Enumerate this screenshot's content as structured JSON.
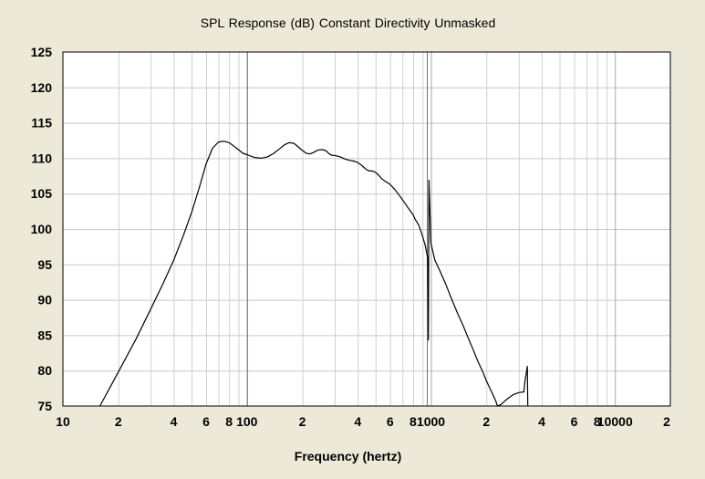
{
  "chart_data": {
    "type": "line",
    "title": "SPL Response (dB)    Constant Directivity    Unmasked",
    "xlabel": "Frequency (hertz)",
    "ylabel": "",
    "x_scale": "log",
    "xlim": [
      10,
      20000
    ],
    "ylim": [
      75,
      125
    ],
    "grid": true,
    "y_ticks": [
      125,
      120,
      115,
      110,
      105,
      100,
      95,
      90,
      85,
      80,
      75
    ],
    "x_ticks": [
      {
        "value": 10,
        "label": "10"
      },
      {
        "value": 20,
        "label": "2"
      },
      {
        "value": 40,
        "label": "4"
      },
      {
        "value": 60,
        "label": "6"
      },
      {
        "value": 80,
        "label": "8"
      },
      {
        "value": 100,
        "label": "100"
      },
      {
        "value": 200,
        "label": "2"
      },
      {
        "value": 400,
        "label": "4"
      },
      {
        "value": 600,
        "label": "6"
      },
      {
        "value": 800,
        "label": "8"
      },
      {
        "value": 1000,
        "label": "1000"
      },
      {
        "value": 2000,
        "label": "2"
      },
      {
        "value": 4000,
        "label": "4"
      },
      {
        "value": 6000,
        "label": "6"
      },
      {
        "value": 8000,
        "label": "8"
      },
      {
        "value": 10000,
        "label": "10000"
      },
      {
        "value": 20000,
        "label": "2"
      }
    ],
    "vertical_markers": [
      {
        "x": 100,
        "style": "darker grid line"
      },
      {
        "x": 950,
        "style": "darker grid line"
      }
    ],
    "series": [
      {
        "x": [
          15.9,
          20,
          25,
          30,
          35,
          40,
          45,
          50,
          55,
          60,
          65,
          70,
          75,
          80,
          85,
          90,
          95,
          100,
          110,
          120,
          130,
          140,
          150,
          160,
          170,
          180,
          190,
          200,
          210,
          220,
          230,
          240,
          250,
          260,
          270,
          280,
          290,
          300,
          320,
          340,
          360,
          380,
          400,
          420,
          440,
          460,
          480,
          500,
          520,
          540,
          560,
          600,
          640,
          680,
          720,
          760,
          800,
          820,
          860,
          900,
          930,
          960,
          968,
          975,
          1000,
          1050,
          1100,
          1200,
          1300,
          1400,
          1500,
          1600,
          1700,
          1800,
          1900,
          2000,
          2100,
          2190,
          2250,
          2300,
          2400,
          2600,
          2800,
          3000,
          3200,
          3250,
          3300,
          3340,
          3360
        ],
        "y": [
          75.0,
          79.8,
          84.5,
          88.7,
          92.3,
          95.6,
          99.0,
          102.3,
          105.8,
          109.2,
          111.4,
          112.3,
          112.4,
          112.2,
          111.7,
          111.2,
          110.7,
          110.5,
          110.1,
          110.0,
          110.2,
          110.7,
          111.3,
          111.9,
          112.2,
          112.1,
          111.6,
          111.1,
          110.7,
          110.6,
          110.8,
          111.1,
          111.2,
          111.2,
          111.0,
          110.6,
          110.4,
          110.4,
          110.2,
          109.9,
          109.7,
          109.6,
          109.4,
          109.0,
          108.5,
          108.2,
          108.2,
          108.0,
          107.6,
          107.1,
          106.8,
          106.3,
          105.5,
          104.6,
          103.7,
          102.8,
          102.0,
          101.4,
          100.5,
          99.0,
          97.7,
          95.9,
          84.3,
          106.9,
          98.0,
          95.6,
          94.5,
          92.3,
          90.0,
          88.0,
          86.3,
          84.5,
          82.9,
          81.3,
          80.0,
          78.6,
          77.4,
          76.4,
          75.7,
          75.0,
          75.2,
          76.0,
          76.6,
          76.9,
          77.0,
          78.7,
          79.7,
          80.6,
          75.0
        ]
      }
    ]
  }
}
